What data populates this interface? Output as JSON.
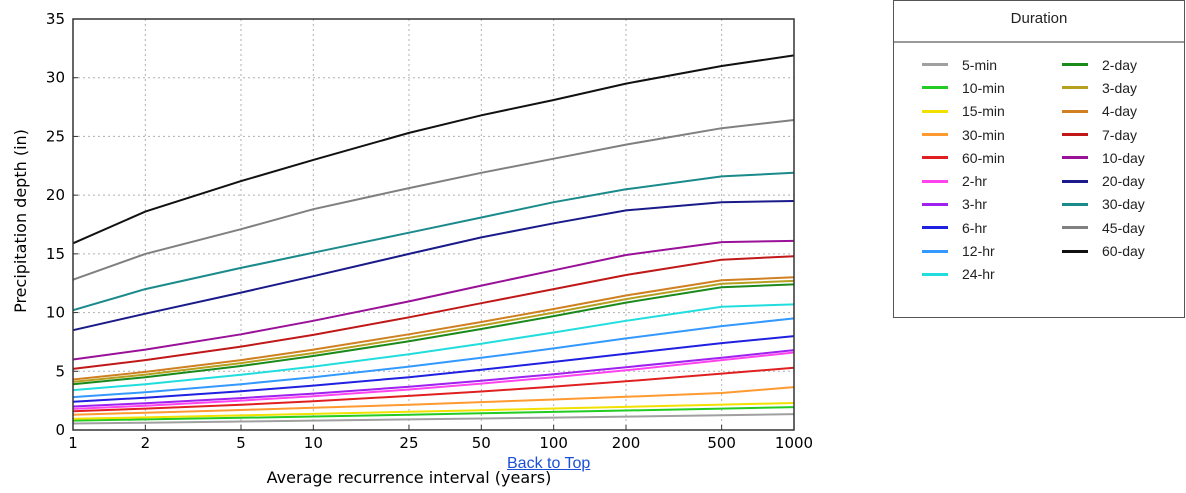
{
  "chart_data": {
    "type": "line",
    "title": "",
    "xlabel": "Average recurrence interval (years)",
    "ylabel": "Precipitation depth (in)",
    "x_scale": "log",
    "x": [
      1,
      2,
      5,
      10,
      25,
      50,
      100,
      200,
      500,
      1000
    ],
    "x_tick_labels": [
      "1",
      "2",
      "5",
      "10",
      "25",
      "50",
      "100",
      "200",
      "500",
      "1000"
    ],
    "ylim": [
      0,
      35
    ],
    "y_ticks": [
      0,
      5,
      10,
      15,
      20,
      25,
      30,
      35
    ],
    "grid": true,
    "legend_title": "Duration",
    "legend_position": "right, outside plot",
    "series": [
      {
        "name": "5-min",
        "color": "#a0a0a0",
        "values": [
          0.55,
          0.62,
          0.72,
          0.8,
          0.9,
          0.98,
          1.06,
          1.14,
          1.25,
          1.35
        ]
      },
      {
        "name": "10-min",
        "color": "#22cc22",
        "values": [
          0.8,
          0.9,
          1.04,
          1.15,
          1.3,
          1.42,
          1.54,
          1.66,
          1.82,
          1.95
        ]
      },
      {
        "name": "15-min",
        "color": "#f2e000",
        "values": [
          0.95,
          1.07,
          1.24,
          1.37,
          1.55,
          1.69,
          1.83,
          1.97,
          2.16,
          2.3
        ]
      },
      {
        "name": "30-min",
        "color": "#ff9a30",
        "values": [
          1.3,
          1.47,
          1.7,
          1.9,
          2.15,
          2.38,
          2.6,
          2.83,
          3.15,
          3.65
        ]
      },
      {
        "name": "60-min",
        "color": "#e02020",
        "values": [
          1.6,
          1.82,
          2.15,
          2.45,
          2.9,
          3.28,
          3.7,
          4.15,
          4.8,
          5.3
        ]
      },
      {
        "name": "2-hr",
        "color": "#ff44ee",
        "values": [
          1.8,
          2.07,
          2.5,
          2.88,
          3.45,
          3.95,
          4.5,
          5.08,
          5.95,
          6.6
        ]
      },
      {
        "name": "3-hr",
        "color": "#a020f0",
        "values": [
          2.0,
          2.28,
          2.72,
          3.1,
          3.68,
          4.2,
          4.75,
          5.35,
          6.15,
          6.8
        ]
      },
      {
        "name": "6-hr",
        "color": "#2020e0",
        "values": [
          2.4,
          2.75,
          3.3,
          3.78,
          4.5,
          5.13,
          5.8,
          6.5,
          7.4,
          8.0
        ]
      },
      {
        "name": "12-hr",
        "color": "#3399ff",
        "values": [
          2.8,
          3.22,
          3.9,
          4.5,
          5.4,
          6.15,
          6.95,
          7.8,
          8.85,
          9.5
        ]
      },
      {
        "name": "24-hr",
        "color": "#22dddd",
        "values": [
          3.4,
          3.9,
          4.7,
          5.4,
          6.45,
          7.35,
          8.3,
          9.3,
          10.5,
          10.7
        ]
      },
      {
        "name": "2-day",
        "color": "#1a8a1a",
        "values": [
          3.9,
          4.5,
          5.45,
          6.3,
          7.55,
          8.6,
          9.7,
          10.85,
          12.15,
          12.4
        ]
      },
      {
        "name": "3-day",
        "color": "#b5a020",
        "values": [
          4.1,
          4.72,
          5.7,
          6.55,
          7.85,
          8.9,
          10.0,
          11.15,
          12.45,
          12.7
        ]
      },
      {
        "name": "4-day",
        "color": "#d08020",
        "values": [
          4.3,
          4.95,
          5.95,
          6.85,
          8.15,
          9.2,
          10.3,
          11.45,
          12.75,
          13.0
        ]
      },
      {
        "name": "7-day",
        "color": "#c01818",
        "values": [
          5.2,
          5.95,
          7.1,
          8.1,
          9.6,
          10.8,
          12.0,
          13.2,
          14.5,
          14.8
        ]
      },
      {
        "name": "10-day",
        "color": "#991199",
        "values": [
          6.0,
          6.85,
          8.15,
          9.3,
          10.95,
          12.3,
          13.6,
          14.9,
          16.0,
          16.1
        ]
      },
      {
        "name": "20-day",
        "color": "#1a1a8a",
        "values": [
          8.5,
          9.9,
          11.7,
          13.1,
          15.0,
          16.4,
          17.6,
          18.7,
          19.4,
          19.5
        ]
      },
      {
        "name": "30-day",
        "color": "#1a8a8a",
        "values": [
          10.2,
          12.0,
          13.8,
          15.1,
          16.8,
          18.1,
          19.4,
          20.5,
          21.6,
          21.9
        ]
      },
      {
        "name": "45-day",
        "color": "#808080",
        "values": [
          12.8,
          15.0,
          17.1,
          18.8,
          20.6,
          21.9,
          23.1,
          24.3,
          25.7,
          26.4
        ]
      },
      {
        "name": "60-day",
        "color": "#111111",
        "values": [
          15.9,
          18.6,
          21.2,
          23.0,
          25.3,
          26.8,
          28.1,
          29.5,
          31.0,
          31.9
        ]
      }
    ]
  },
  "links": {
    "back_to_top": "Back to Top"
  }
}
